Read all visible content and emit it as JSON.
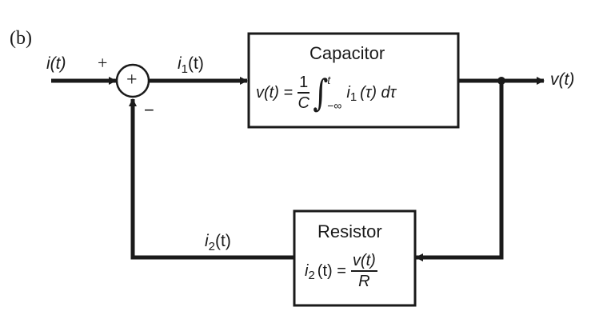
{
  "panel_label": "(b)",
  "signals": {
    "input": "i(t)",
    "i1_base": "i",
    "i1_sub": "1",
    "i1_arg": "(t)",
    "output": "v(t)",
    "i2_base": "i",
    "i2_sub": "2",
    "i2_arg": "(t)"
  },
  "summing_junction": {
    "center_symbol": "+",
    "plus_sign": "+",
    "minus_sign": "−"
  },
  "capacitor_block": {
    "title": "Capacitor",
    "lhs": "v(t) =",
    "frac_num": "1",
    "frac_den": "C",
    "integral": "∫",
    "upper_limit": "t",
    "lower_limit": "−∞",
    "integrand_base": "i",
    "integrand_sub": "1",
    "integrand_rest": "(τ) dτ"
  },
  "resistor_block": {
    "title": "Resistor",
    "lhs_base": "i",
    "lhs_sub": "2",
    "lhs_rest": "(t) =",
    "frac_num": "v(t)",
    "frac_den": "R"
  },
  "colors": {
    "line": "#1a1a1a",
    "background": "#ffffff"
  }
}
